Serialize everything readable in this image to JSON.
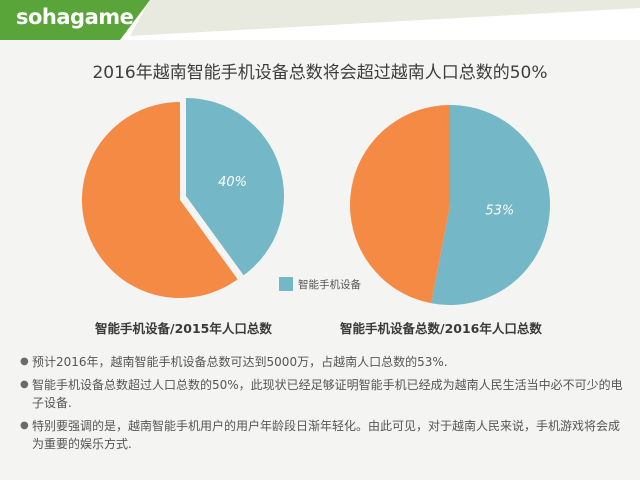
{
  "header": {
    "logo_text": "sohagame",
    "accent_color": "#5aa53a"
  },
  "title": "2016年越南智能手机设备总数将会超过越南人口总数的50%",
  "chart_data": [
    {
      "type": "pie",
      "title": "智能手机设备/2015年人口总数",
      "slices": [
        {
          "label": "智能手机设备",
          "value": 40,
          "color": "#74b7c6",
          "display": "40%"
        },
        {
          "label": "",
          "value": 60,
          "color": "#f58a45",
          "display": ""
        }
      ]
    },
    {
      "type": "pie",
      "title": "智能手机设备总数/2016年人口总数",
      "slices": [
        {
          "label": "智能手机设备",
          "value": 53,
          "color": "#74b7c6",
          "display": "53%"
        },
        {
          "label": "",
          "value": 47,
          "color": "#f58a45",
          "display": ""
        }
      ]
    }
  ],
  "legend": {
    "label": "智能手机设备",
    "color": "#74b7c6"
  },
  "captions": {
    "left": "智能手机设备/2015年人口总数",
    "right": "智能手机设备总数/2016年人口总数"
  },
  "bullets": [
    "预计2016年，越南智能手机设备总数可达到5000万，占越南人口总数的53%.",
    "智能手机设备总数超过人口总数的50%，此现状已经足够证明智能手机已经成为越南人民生活当中必不可少的电子设备.",
    "特别要强调的是，越南智能手机用户的用户年龄段日渐年轻化。由此可见，对于越南人民来说，手机游戏将会成为重要的娱乐方式."
  ],
  "bullet_icon": "bullet-dot"
}
